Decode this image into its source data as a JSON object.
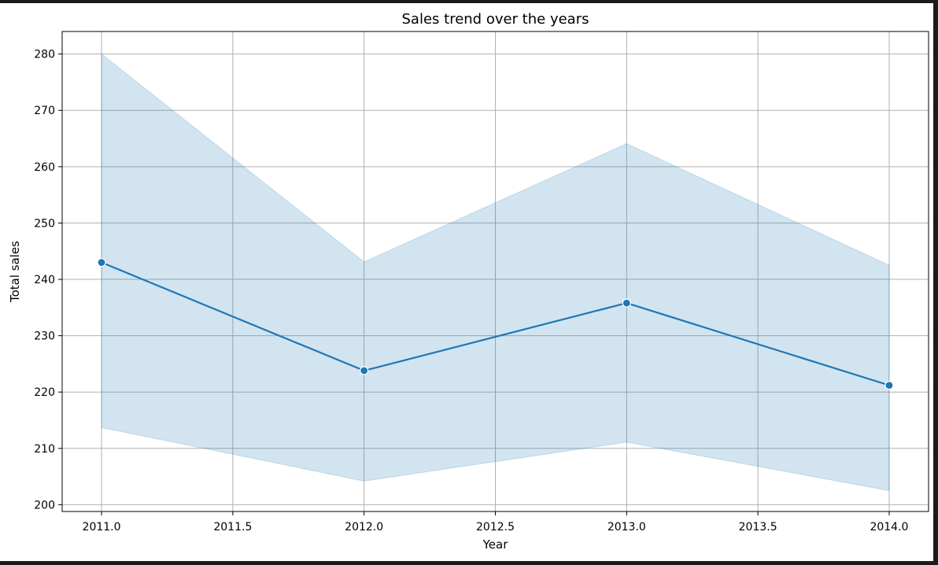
{
  "chart_data": {
    "type": "line",
    "title": "Sales trend over the years",
    "xlabel": "Year",
    "ylabel": "Total sales",
    "xlim": [
      2010.85,
      2014.15
    ],
    "ylim": [
      198.8,
      284
    ],
    "xticks": [
      2011.0,
      2011.5,
      2012.0,
      2012.5,
      2013.0,
      2013.5,
      2014.0
    ],
    "xtick_labels": [
      "2011.0",
      "2011.5",
      "2012.0",
      "2012.5",
      "2013.0",
      "2013.5",
      "2014.0"
    ],
    "yticks": [
      200,
      210,
      220,
      230,
      240,
      250,
      260,
      270,
      280
    ],
    "ytick_labels": [
      "200",
      "210",
      "220",
      "230",
      "240",
      "250",
      "260",
      "270",
      "280"
    ],
    "grid": true,
    "series": [
      {
        "x": [
          2011,
          2012,
          2013,
          2014
        ],
        "values": [
          243.0,
          223.8,
          235.8,
          221.2
        ],
        "ci_lower": [
          213.7,
          204.2,
          211.1,
          202.5
        ],
        "ci_upper": [
          280.0,
          243.1,
          264.1,
          242.5
        ],
        "marker": "circle",
        "color": "#1f77b4",
        "band_color": "#1f77b4"
      }
    ]
  }
}
